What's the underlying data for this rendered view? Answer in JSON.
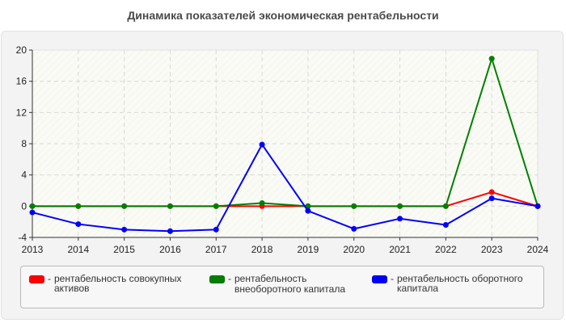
{
  "chart_data": {
    "type": "line",
    "title": "Динамика показателей экономическая рентабельности",
    "xlabel": "",
    "ylabel": "",
    "x": [
      "2013",
      "2014",
      "2015",
      "2016",
      "2017",
      "2018",
      "2019",
      "2020",
      "2021",
      "2022",
      "2023",
      "2024"
    ],
    "ylim": [
      -4,
      20
    ],
    "yticks": [
      -4,
      0,
      4,
      8,
      12,
      16,
      20
    ],
    "grid": true,
    "legend_position": "bottom",
    "series": [
      {
        "name": "рентабельность совокупных активов",
        "color": "#ff0000",
        "values": [
          0,
          0,
          0,
          0,
          0,
          0,
          0,
          0,
          0,
          0,
          1.8,
          0
        ]
      },
      {
        "name": "рентабельность внеоборотного капитала",
        "color": "#008000",
        "values": [
          0,
          0,
          0,
          0,
          0,
          0.4,
          0,
          0,
          0,
          0,
          18.9,
          0
        ]
      },
      {
        "name": "рентабельность оборотного капитала",
        "color": "#0000ff",
        "values": [
          -0.8,
          -2.3,
          -3.0,
          -3.2,
          -3.0,
          7.9,
          -0.6,
          -2.9,
          -1.6,
          -2.4,
          1.0,
          0
        ]
      }
    ]
  },
  "legend": {
    "separator": "-",
    "items": [
      {
        "label": "рентабельность совокупных активов",
        "color": "#ff0000"
      },
      {
        "label": "рентабельность внеоборотного капитала",
        "color": "#008000"
      },
      {
        "label": "рентабельность оборотного капитала",
        "color": "#0000ff"
      }
    ]
  }
}
